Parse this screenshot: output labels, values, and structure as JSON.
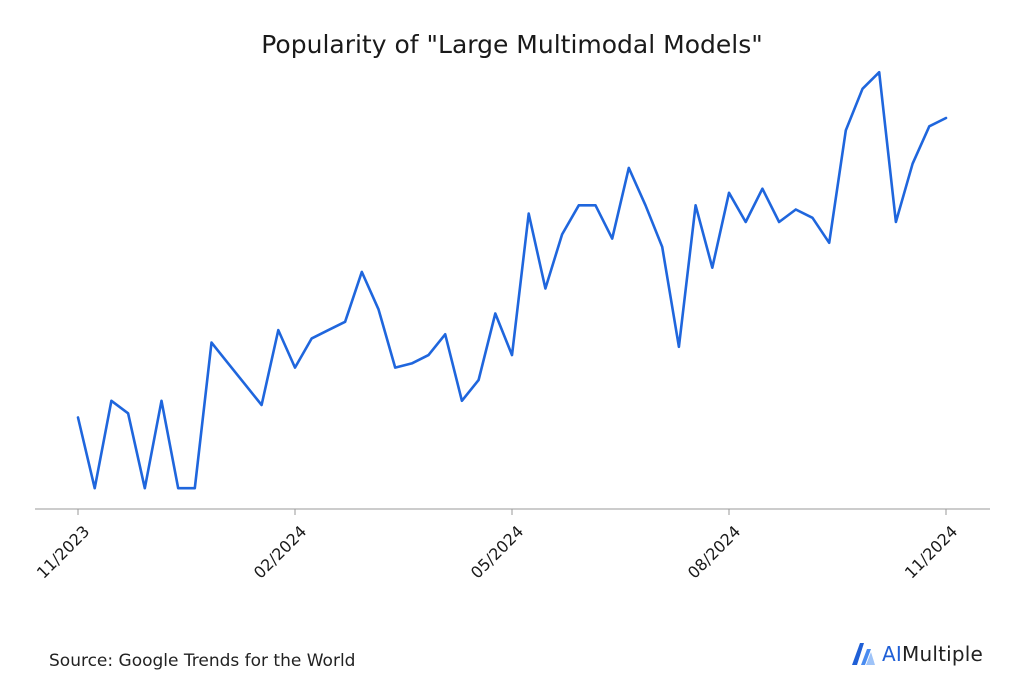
{
  "title": "Popularity of \"Large Multimodal Models\"",
  "source": "Source: Google Trends for the World",
  "brand": {
    "prefix": "AI",
    "suffix": "Multiple"
  },
  "colors": {
    "line": "#1f66dd",
    "axis": "#9a9a9a",
    "brand": "#1f5fd6"
  },
  "chart_data": {
    "type": "line",
    "title": "Popularity of \"Large Multimodal Models\"",
    "xlabel": "",
    "ylabel": "",
    "grid": false,
    "x_ticks": [
      "11/2023",
      "02/2024",
      "05/2024",
      "08/2024",
      "11/2024"
    ],
    "ylim": [
      0,
      100
    ],
    "series": [
      {
        "values": [
          22,
          5,
          26,
          23,
          5,
          26,
          5,
          5,
          40,
          35,
          30,
          25,
          43,
          34,
          41,
          43,
          45,
          57,
          48,
          34,
          35,
          37,
          42,
          26,
          31,
          47,
          37,
          71,
          53,
          66,
          73,
          73,
          65,
          82,
          73,
          63,
          39,
          73,
          58,
          76,
          69,
          77,
          69,
          72,
          70,
          64,
          91,
          101,
          105,
          69,
          83,
          92,
          94
        ]
      }
    ]
  }
}
